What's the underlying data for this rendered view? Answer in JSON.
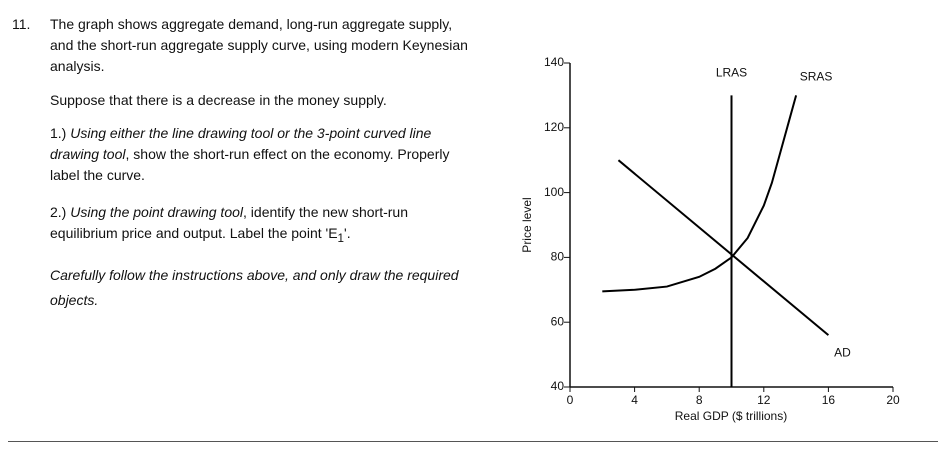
{
  "question": {
    "number": "11.",
    "intro": "The graph shows aggregate demand, long-run aggregate supply, and the short-run aggregate supply curve, using modern Keynesian analysis.",
    "scenario": "Suppose that there is a decrease in the money supply.",
    "step1": {
      "prefix": "1.) ",
      "italic": "Using either the line drawing tool or the 3-point curved line drawing tool",
      "rest": ", show the short-run effect on the economy.  Properly label the curve."
    },
    "step2": {
      "prefix": "2.) ",
      "italic": "Using the point drawing tool",
      "rest": ", identify the new  short-run equilibrium price and output.  Label the point 'E",
      "subscript": "1",
      "end": "'."
    },
    "note": "Carefully follow the instructions above, and only draw the required objects."
  },
  "chart_data": {
    "type": "line",
    "xlabel": "Real GDP ($ trillions)",
    "ylabel": "Price level",
    "xlim": [
      0,
      20
    ],
    "xticks": [
      0,
      4,
      8,
      12,
      16,
      20
    ],
    "ylim": [
      40,
      140
    ],
    "yticks": [
      40,
      60,
      80,
      100,
      120,
      140
    ],
    "series": [
      {
        "name": "LRAS",
        "color": "#000000",
        "x": [
          10,
          10
        ],
        "values": [
          40,
          130
        ]
      },
      {
        "name": "SRAS",
        "color": "#000000",
        "x": [
          2,
          4,
          6,
          8,
          9,
          10,
          11,
          12,
          12.5,
          13,
          13.5,
          14
        ],
        "values": [
          69.5,
          70,
          71,
          74,
          76.5,
          80,
          86,
          96,
          103,
          112,
          121,
          130
        ]
      },
      {
        "name": "AD",
        "color": "#000000",
        "x": [
          3,
          16
        ],
        "values": [
          110,
          56
        ]
      }
    ]
  }
}
